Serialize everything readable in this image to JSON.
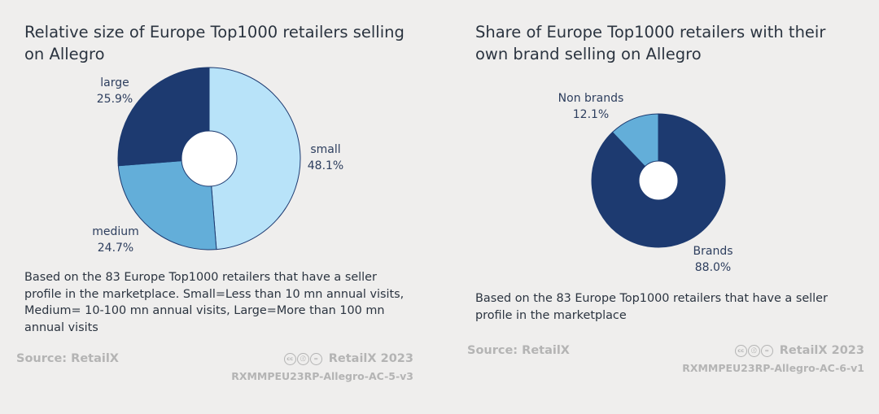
{
  "chart_data": [
    {
      "type": "pie",
      "title": "Relative size of Europe Top1000 retailers selling on Allegro",
      "categories": [
        "small",
        "medium",
        "large"
      ],
      "values": [
        48.1,
        24.7,
        25.9
      ],
      "value_labels": [
        "48.1%",
        "24.7%",
        "25.9%"
      ],
      "colors": [
        "#b8e3f9",
        "#63aed9",
        "#1d3a70"
      ],
      "note": "Based on the 83 Europe Top1000 retailers that have a seller profile in the marketplace. Small=Less than 10 mn annual visits, Medium= 10-100 mn annual visits, Large=More than 100 mn annual visits",
      "source": "Source: RetailX",
      "credit": "RetailX 2023",
      "code": "RXMMPEU23RP-Allegro-AC-5-v3"
    },
    {
      "type": "pie",
      "title": "Share of Europe Top1000 retailers with their own brand selling on Allegro",
      "categories": [
        "Brands",
        "Non brands"
      ],
      "values": [
        88.0,
        12.1
      ],
      "value_labels": [
        "88.0%",
        "12.1%"
      ],
      "colors": [
        "#1d3a70",
        "#63aed9"
      ],
      "note": "Based on the 83 Europe Top1000 retailers that have a seller profile in the marketplace",
      "source": "Source: RetailX",
      "credit": "RetailX 2023",
      "code": "RXMMPEU23RP-Allegro-AC-6-v1"
    }
  ],
  "cc_icons": [
    "cc-icon",
    "by-icon",
    "nd-icon"
  ]
}
